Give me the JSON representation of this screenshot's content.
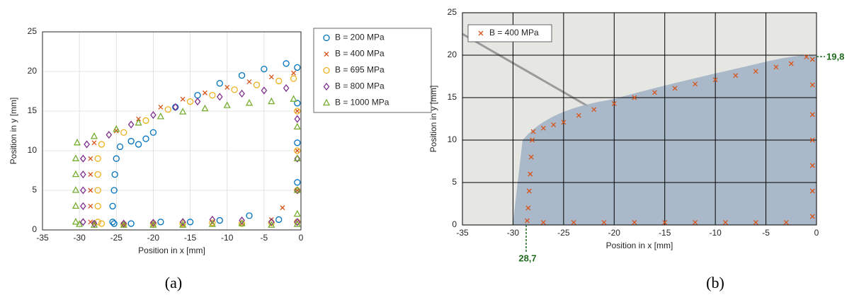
{
  "chart_data": [
    {
      "type": "scatter",
      "caption": "(a)",
      "x_label": "Position in x [mm]",
      "y_label": "Position in y [mm]",
      "xlim": [
        -35,
        0
      ],
      "ylim": [
        0,
        25
      ],
      "xticks": [
        -35,
        -30,
        -25,
        -20,
        -15,
        -10,
        -5,
        0
      ],
      "yticks": [
        0,
        5,
        10,
        15,
        20,
        25
      ],
      "grid": true,
      "grid_color": "#dcdcdc",
      "legend": "outside-right",
      "series": [
        {
          "name": "B = 200 MPa",
          "color": "#0072bd",
          "marker": "circle",
          "x": [
            -25.5,
            -25.5,
            -25.3,
            -25.2,
            -25,
            -24.5,
            -23,
            -22,
            -21,
            -20,
            -17,
            -14,
            -11,
            -8,
            -5,
            -2,
            -0.5,
            -0.5,
            -0.5,
            -0.5,
            -0.5,
            -3,
            -7,
            -11,
            -15,
            -19,
            -23,
            -25.3
          ],
          "y": [
            1,
            3,
            5,
            7,
            9,
            10.5,
            11.2,
            10.8,
            11.5,
            12.3,
            15.5,
            17,
            18.5,
            19.5,
            20.3,
            21,
            20.5,
            16,
            11,
            6,
            1,
            1.3,
            1.8,
            1.2,
            1,
            1,
            0.8,
            0.8
          ]
        },
        {
          "name": "B = 400 MPa",
          "color": "#d95319",
          "marker": "x",
          "x": [
            -28.5,
            -28.5,
            -28.5,
            -28.5,
            -28.5,
            -28,
            -25,
            -22,
            -19,
            -16,
            -13,
            -10,
            -7,
            -4,
            -1,
            -0.5,
            -0.5,
            -0.5,
            -0.5,
            -2.5,
            -4,
            -8,
            -12,
            -16,
            -20,
            -24,
            -28
          ],
          "y": [
            1,
            3,
            5,
            7,
            9,
            11,
            12.5,
            14,
            15.5,
            16.5,
            17.3,
            18,
            18.7,
            19.3,
            19.8,
            15,
            10,
            5,
            1,
            2.8,
            1.3,
            0.8,
            0.9,
            0.7,
            0.8,
            0.7,
            0.8
          ]
        },
        {
          "name": "B = 695 MPa",
          "color": "#edb120",
          "marker": "circle",
          "x": [
            -27.5,
            -27.5,
            -27.5,
            -27.5,
            -27.5,
            -27,
            -24,
            -21,
            -18,
            -15,
            -12,
            -9,
            -6,
            -3,
            -1,
            -0.5,
            -0.5,
            -0.5,
            -0.5,
            -4,
            -8,
            -12,
            -16,
            -20,
            -24,
            -27
          ],
          "y": [
            1,
            3,
            5,
            7,
            9,
            10.8,
            12.3,
            13.8,
            15.2,
            16.2,
            17,
            17.7,
            18.3,
            18.8,
            19.1,
            15,
            10,
            5,
            1,
            0.9,
            0.8,
            0.9,
            0.8,
            0.8,
            0.7,
            0.8
          ]
        },
        {
          "name": "B = 800 MPa",
          "color": "#7e2f8e",
          "marker": "diamond",
          "x": [
            -29.5,
            -29.5,
            -29.5,
            -29.5,
            -29.5,
            -29,
            -26,
            -23,
            -20,
            -17,
            -14,
            -11,
            -8,
            -5,
            -2,
            -0.5,
            -0.5,
            -0.5,
            -0.5,
            -4,
            -8,
            -12,
            -16,
            -20,
            -24,
            -28
          ],
          "y": [
            1,
            3,
            5,
            7,
            9,
            10.8,
            12,
            13.3,
            14.5,
            15.5,
            16.2,
            16.8,
            17.2,
            17.6,
            17.9,
            14,
            9,
            5,
            1,
            1,
            1.2,
            1.3,
            1,
            0.9,
            0.8,
            0.8
          ]
        },
        {
          "name": "B = 1000 MPa",
          "color": "#77ac30",
          "marker": "triangle",
          "x": [
            -30.5,
            -30.5,
            -30.5,
            -30.5,
            -30.5,
            -30.3,
            -28,
            -25,
            -22,
            -19,
            -16,
            -13,
            -10,
            -7,
            -4,
            -1,
            -0.5,
            -0.5,
            -0.5,
            -0.5,
            -0.5,
            -4,
            -8,
            -12,
            -16,
            -20,
            -24,
            -28,
            -30
          ],
          "y": [
            1,
            3,
            5,
            7,
            9,
            11,
            11.8,
            12.7,
            13.5,
            14.3,
            14.9,
            15.3,
            15.7,
            16,
            16.2,
            16.5,
            13,
            9,
            5,
            2,
            0.7,
            0.6,
            0.8,
            0.7,
            0.6,
            0.6,
            0.6,
            0.6,
            0.7
          ]
        }
      ]
    },
    {
      "type": "scatter",
      "caption": "(b)",
      "x_label": "Position in x [mm]",
      "y_label": "Position in y [mm]",
      "xlim": [
        -35,
        0
      ],
      "ylim": [
        0,
        25
      ],
      "xticks": [
        -35,
        -30,
        -25,
        -20,
        -15,
        -10,
        -5,
        0
      ],
      "yticks": [
        0,
        5,
        10,
        15,
        20,
        25
      ],
      "grid": true,
      "grid_color": "#000000",
      "legend": "upper-left",
      "annotations": [
        "19,8",
        "28,7"
      ],
      "series": [
        {
          "name": "B = 400 MPa",
          "color": "#d95319",
          "marker": "x",
          "x": [
            -28.6,
            -28.5,
            -28.4,
            -28.3,
            -28.2,
            -28.1,
            -28,
            -27,
            -26,
            -25,
            -23.5,
            -22,
            -20,
            -18,
            -16,
            -14,
            -12,
            -10,
            -8,
            -6,
            -4,
            -2.5,
            -1,
            -0.4,
            -0.4,
            -0.4,
            -0.4,
            -0.4,
            -0.4,
            -0.4,
            -3,
            -6,
            -9,
            -12,
            -15,
            -18,
            -21,
            -24,
            -27
          ],
          "y": [
            0.5,
            2,
            4,
            6,
            8,
            10,
            11,
            11.4,
            11.8,
            12.1,
            12.9,
            13.6,
            14.3,
            15,
            15.6,
            16.1,
            16.6,
            17.1,
            17.6,
            18.1,
            18.6,
            19,
            19.8,
            19.5,
            16.5,
            13,
            10,
            7,
            4,
            1,
            0.3,
            0.3,
            0.3,
            0.3,
            0.3,
            0.3,
            0.3,
            0.3,
            0.3
          ]
        }
      ]
    }
  ]
}
